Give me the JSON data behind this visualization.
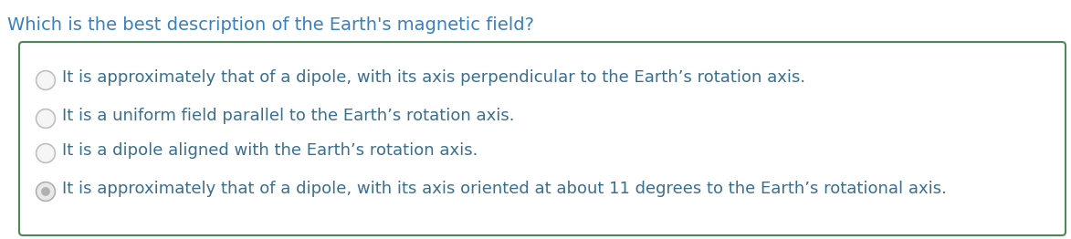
{
  "question": "Which is the best description of the Earth's magnetic field?",
  "options": [
    "It is approximately that of a dipole, with its axis perpendicular to the Earth’s rotation axis.",
    "It is a uniform field parallel to the Earth’s rotation axis.",
    "It is a dipole aligned with the Earth’s rotation axis.",
    "It is approximately that of a dipole, with its axis oriented at about 11 degrees to the Earth’s rotational axis."
  ],
  "selected_index": 3,
  "background_color": "#ffffff",
  "question_color": "#3a7fbf",
  "option_color": "#3a6e8f",
  "box_border_color": "#4a8a5a",
  "box_background": "#ffffff",
  "question_fontsize": 14,
  "option_fontsize": 13,
  "radio_unsel_edge": "#c0c0c0",
  "radio_unsel_face": "#f5f5f5",
  "radio_sel_edge": "#b0b0b0",
  "radio_sel_face": "#e8e8e8",
  "radio_sel_dot": "#b0b0b0"
}
